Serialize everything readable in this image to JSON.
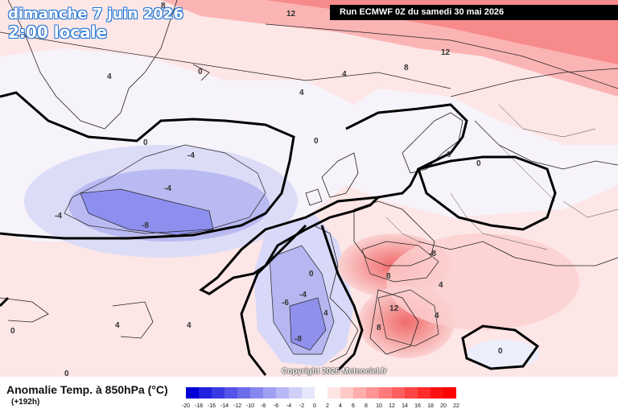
{
  "title": {
    "date": "dimanche 7 juin 2026",
    "time": "2:00 locale"
  },
  "run_info": "Run ECMWF 0Z du samedi 30 mai 2026",
  "copyright": "Copyright 2026 Meteociel.fr",
  "variable_title": "Anomalie Temp. à 850hPa (°C)",
  "lead_time": "(+192h)",
  "colorbar": {
    "ticks": [
      "-20",
      "-18",
      "-16",
      "-14",
      "-12",
      "-10",
      "-8",
      "-6",
      "-4",
      "-2",
      "0",
      "2",
      "4",
      "6",
      "8",
      "10",
      "12",
      "14",
      "16",
      "18",
      "20",
      "22"
    ],
    "colors": [
      "#0000d6",
      "#1f1fdf",
      "#3a3ae4",
      "#5454e8",
      "#6d6dec",
      "#8787ef",
      "#a0a0f3",
      "#b8b8f6",
      "#cfcff9",
      "#e6e6fc",
      "#ffffff",
      "#ffe4e4",
      "#ffc9c9",
      "#ffaeae",
      "#ff9494",
      "#ff7a7a",
      "#ff5f5f",
      "#ff4444",
      "#ff2a2a",
      "#ff1111",
      "#ff0000"
    ]
  },
  "contour_labels": [
    "12",
    "12",
    "8",
    "8",
    "4",
    "4",
    "4",
    "0",
    "0",
    "0",
    "0",
    "0",
    "-4",
    "-4",
    "-8",
    "-4",
    "-4",
    "-8",
    "0",
    "-6",
    "-8",
    "4",
    "4",
    "8",
    "12",
    "8",
    "4",
    "0",
    "4",
    "4",
    "0",
    "0"
  ]
}
